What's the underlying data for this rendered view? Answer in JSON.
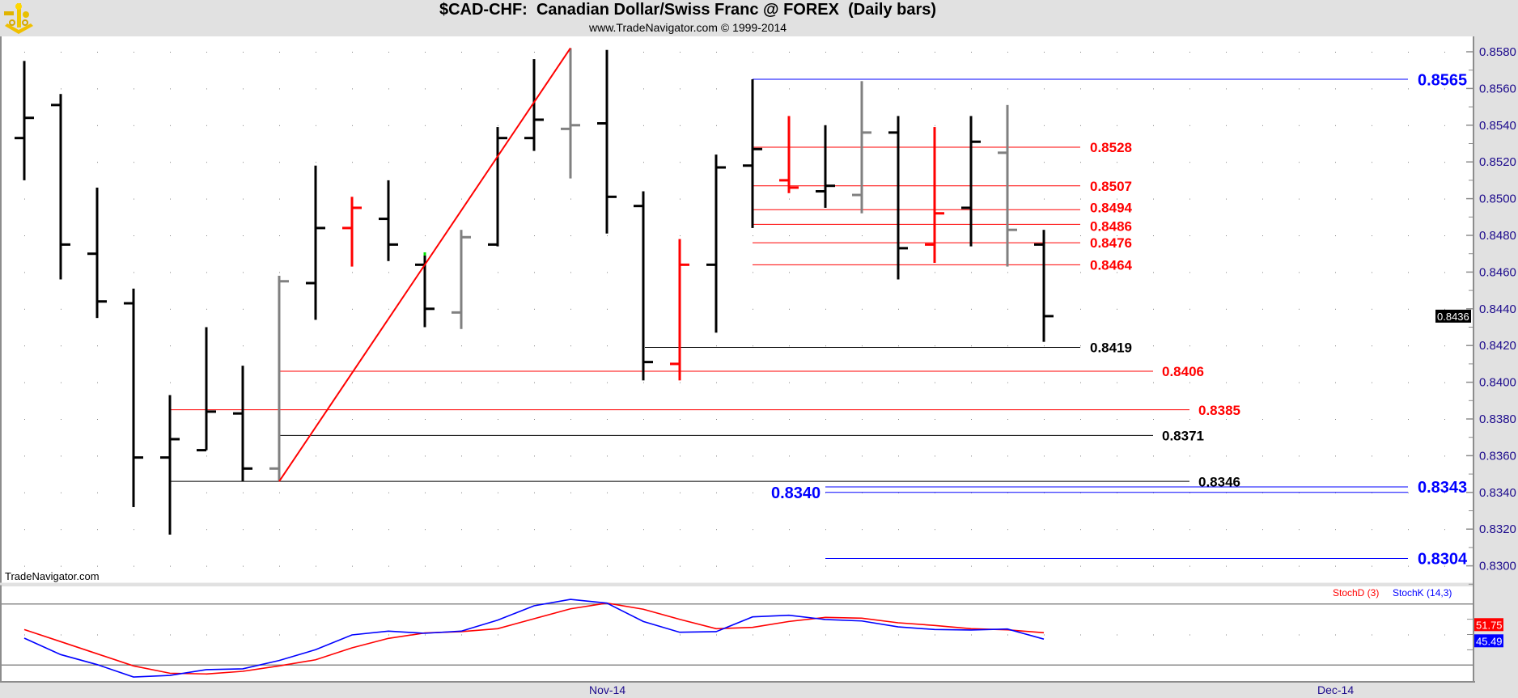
{
  "header": {
    "title": "$CAD-CHF:  Canadian Dollar/Swiss Franc @ FOREX  (Daily bars)",
    "subtitle": "www.TradeNavigator.com © 1999-2014",
    "watermark": "TradeNavigator.com",
    "logo_icon": "sextant-icon"
  },
  "colors": {
    "black_bar": "#000000",
    "gray_bar": "#808080",
    "red_bar": "#ff0000",
    "blue_level": "#0000ff",
    "axis_text": "#1c0a8c",
    "stoch_d": "#ff0000",
    "stoch_k": "#0000ff"
  },
  "chart_data": [
    {
      "type": "ohlc",
      "title": "$CAD-CHF:  Canadian Dollar/Swiss Franc @ FOREX  (Daily bars)",
      "ylim": [
        0.829,
        0.859
      ],
      "y_ticks": [
        "0.8300",
        "0.8320",
        "0.8340",
        "0.8360",
        "0.8380",
        "0.8400",
        "0.8420",
        "0.8440",
        "0.8460",
        "0.8480",
        "0.8500",
        "0.8520",
        "0.8540",
        "0.8560",
        "0.8580"
      ],
      "x_tick_labels": [
        {
          "label": "Nov-14",
          "bar": 16
        },
        {
          "label": "Dec-14",
          "bar": 36
        }
      ],
      "grid": "dotted",
      "last_price_tag": "0.8436",
      "bars": [
        {
          "o": 0.8533,
          "h": 0.8575,
          "l": 0.851,
          "c": 0.8544,
          "color": "black"
        },
        {
          "o": 0.8551,
          "h": 0.8557,
          "l": 0.8456,
          "c": 0.8475,
          "color": "black"
        },
        {
          "o": 0.847,
          "h": 0.8506,
          "l": 0.8435,
          "c": 0.8444,
          "color": "black"
        },
        {
          "o": 0.8443,
          "h": 0.8451,
          "l": 0.8332,
          "c": 0.8359,
          "color": "black"
        },
        {
          "o": 0.8359,
          "h": 0.8393,
          "l": 0.8317,
          "c": 0.8369,
          "color": "black"
        },
        {
          "o": 0.8363,
          "h": 0.843,
          "l": 0.8363,
          "c": 0.8384,
          "color": "black"
        },
        {
          "o": 0.8383,
          "h": 0.8409,
          "l": 0.8346,
          "c": 0.8353,
          "color": "black"
        },
        {
          "o": 0.8353,
          "h": 0.8458,
          "l": 0.8346,
          "c": 0.8455,
          "color": "gray"
        },
        {
          "o": 0.8454,
          "h": 0.8518,
          "l": 0.8434,
          "c": 0.8484,
          "color": "black"
        },
        {
          "o": 0.8484,
          "h": 0.8501,
          "l": 0.8463,
          "c": 0.8495,
          "color": "red"
        },
        {
          "o": 0.8489,
          "h": 0.851,
          "l": 0.8466,
          "c": 0.8475,
          "color": "black"
        },
        {
          "o": 0.8464,
          "h": 0.8469,
          "l": 0.843,
          "c": 0.844,
          "color": "black",
          "marker": "green"
        },
        {
          "o": 0.8438,
          "h": 0.8483,
          "l": 0.8429,
          "c": 0.8479,
          "color": "gray"
        },
        {
          "o": 0.8475,
          "h": 0.8539,
          "l": 0.8474,
          "c": 0.8533,
          "color": "black"
        },
        {
          "o": 0.8533,
          "h": 0.8576,
          "l": 0.8526,
          "c": 0.8543,
          "color": "black"
        },
        {
          "o": 0.8538,
          "h": 0.8582,
          "l": 0.8511,
          "c": 0.854,
          "color": "gray"
        },
        {
          "o": 0.8541,
          "h": 0.8581,
          "l": 0.8481,
          "c": 0.8501,
          "color": "black"
        },
        {
          "o": 0.8496,
          "h": 0.8504,
          "l": 0.8401,
          "c": 0.8411,
          "color": "black"
        },
        {
          "o": 0.841,
          "h": 0.8478,
          "l": 0.8401,
          "c": 0.8464,
          "color": "red"
        },
        {
          "o": 0.8464,
          "h": 0.8524,
          "l": 0.8427,
          "c": 0.8517,
          "color": "black"
        },
        {
          "o": 0.8518,
          "h": 0.8565,
          "l": 0.8484,
          "c": 0.8527,
          "color": "black"
        },
        {
          "o": 0.851,
          "h": 0.8545,
          "l": 0.8503,
          "c": 0.8506,
          "color": "red"
        },
        {
          "o": 0.8504,
          "h": 0.854,
          "l": 0.8495,
          "c": 0.8507,
          "color": "black"
        },
        {
          "o": 0.8502,
          "h": 0.8564,
          "l": 0.8492,
          "c": 0.8536,
          "color": "gray"
        },
        {
          "o": 0.8536,
          "h": 0.8545,
          "l": 0.8456,
          "c": 0.8473,
          "color": "black"
        },
        {
          "o": 0.8475,
          "h": 0.8539,
          "l": 0.8465,
          "c": 0.8492,
          "color": "red"
        },
        {
          "o": 0.8495,
          "h": 0.8545,
          "l": 0.8474,
          "c": 0.8531,
          "color": "black"
        },
        {
          "o": 0.8525,
          "h": 0.8551,
          "l": 0.8463,
          "c": 0.8483,
          "color": "gray"
        },
        {
          "o": 0.8475,
          "h": 0.8483,
          "l": 0.8422,
          "c": 0.8436,
          "color": "black"
        }
      ],
      "levels": [
        {
          "label": "0.8565",
          "value": 0.8565,
          "color": "blue",
          "from_bar": 20
        },
        {
          "label": "0.8528",
          "value": 0.8528,
          "color": "red",
          "from_bar": 20
        },
        {
          "label": "0.8507",
          "value": 0.8507,
          "color": "red",
          "from_bar": 20
        },
        {
          "label": "0.8494",
          "value": 0.8494,
          "color": "red",
          "from_bar": 20
        },
        {
          "label": "0.8486",
          "value": 0.8486,
          "color": "red",
          "from_bar": 20
        },
        {
          "label": "0.8476",
          "value": 0.8476,
          "color": "red",
          "from_bar": 20
        },
        {
          "label": "0.8464",
          "value": 0.8464,
          "color": "red",
          "from_bar": 20
        },
        {
          "label": "0.8419",
          "value": 0.8419,
          "color": "black",
          "from_bar": 17
        },
        {
          "label": "0.8406",
          "value": 0.8406,
          "color": "red",
          "from_bar": 7
        },
        {
          "label": "0.8385",
          "value": 0.8385,
          "color": "red",
          "from_bar": 4
        },
        {
          "label": "0.8371",
          "value": 0.8371,
          "color": "black",
          "from_bar": 7
        },
        {
          "label": "0.8346",
          "value": 0.8346,
          "color": "black",
          "from_bar": 4
        },
        {
          "label": "0.8343",
          "value": 0.8343,
          "color": "blue",
          "from_bar": 22
        },
        {
          "label": "0.8340",
          "value": 0.834,
          "color": "blue",
          "from_bar": 22
        },
        {
          "label": "0.8304",
          "value": 0.8304,
          "color": "blue",
          "from_bar": 22
        }
      ],
      "trendline": {
        "color": "red",
        "from": {
          "bar": 7,
          "value": 0.8346
        },
        "to": {
          "bar": 15,
          "value": 0.8582
        }
      }
    },
    {
      "type": "line",
      "ylim": [
        0,
        100
      ],
      "reference_lines": [
        20,
        80
      ],
      "series": [
        {
          "name": "StochD (3)",
          "color": "red",
          "last_tag": "51.75",
          "values": [
            54.9,
            43.0,
            31.1,
            19.2,
            12.0,
            11.3,
            13.9,
            19.2,
            25.2,
            36.9,
            46.2,
            51.5,
            52.8,
            55.7,
            65.5,
            75.2,
            80.8,
            74.8,
            64.9,
            55.7,
            57.0,
            62.8,
            66.8,
            66.0,
            61.5,
            58.9,
            55.7,
            54.6,
            51.75
          ]
        },
        {
          "name": "StochK (14,3)",
          "color": "blue",
          "last_tag": "45.49",
          "values": [
            46.4,
            30.3,
            20.5,
            8.3,
            9.9,
            15.5,
            16.3,
            24.5,
            35.1,
            49.6,
            53.3,
            51.2,
            53.3,
            64.1,
            78.2,
            84.5,
            80.8,
            62.8,
            52.2,
            52.8,
            67.3,
            68.9,
            64.7,
            63.3,
            57.5,
            54.9,
            54.4,
            55.4,
            45.49
          ]
        }
      ]
    }
  ]
}
